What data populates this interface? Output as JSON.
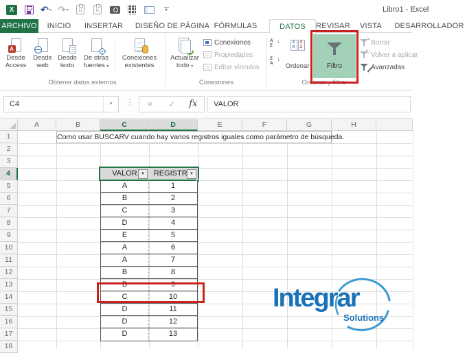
{
  "window": {
    "title": "Libro1 - Excel"
  },
  "qat": {
    "icons": [
      "excel-logo",
      "save",
      "undo",
      "redo",
      "paste-values",
      "paste-formulas",
      "camera",
      "calculator",
      "form",
      "customize-quick-access"
    ]
  },
  "tabs": [
    "ARCHIVO",
    "INICIO",
    "INSERTAR",
    "DISEÑO DE PÁGINA",
    "FÓRMULAS",
    "DATOS",
    "REVISAR",
    "VISTA",
    "DESARROLLADOR"
  ],
  "ribbon": {
    "groups": [
      {
        "label": "Obtener datos externos"
      },
      {
        "label": "Conexiones"
      },
      {
        "label": "Ordenar y filtrar"
      }
    ],
    "buttons": {
      "desde_access": {
        "l1": "Desde",
        "l2": "Access"
      },
      "desde_web": {
        "l1": "Desde",
        "l2": "web"
      },
      "desde_texto": {
        "l1": "Desde",
        "l2": "texto"
      },
      "de_otras_fuentes": {
        "l1": "De otras",
        "l2": "fuentes"
      },
      "conexiones_existentes": {
        "l1": "Conexiones",
        "l2": "existentes"
      },
      "actualizar_todo": {
        "l1": "Actualizar",
        "l2": "todo"
      },
      "conexiones": "Conexiones",
      "propiedades": "Propiedades",
      "editar_vinculos": "Editar vínculos",
      "ordenar": "Ordenar",
      "filtro": "Filtro",
      "borrar": "Borrar",
      "volver_a_aplicar": "Volver a aplicar",
      "avanzadas": "Avanzadas"
    }
  },
  "formula_bar": {
    "cell_ref": "C4",
    "content": "VALOR"
  },
  "sheet": {
    "col_headers": [
      "A",
      "B",
      "C",
      "D",
      "E",
      "F",
      "G",
      "H"
    ],
    "selected_cols": [
      "C",
      "D"
    ],
    "row_count": 18,
    "selected_row": 4,
    "note": "Como usar BUSCARV cuando hay varios registros iguales como parámetro de búsqueda.",
    "table": {
      "headers": [
        "VALOR",
        "REGISTRO"
      ],
      "rows": [
        [
          "A",
          "1"
        ],
        [
          "B",
          "2"
        ],
        [
          "C",
          "3"
        ],
        [
          "D",
          "4"
        ],
        [
          "E",
          "5"
        ],
        [
          "A",
          "6"
        ],
        [
          "A",
          "7"
        ],
        [
          "B",
          "8"
        ],
        [
          "B",
          "9"
        ],
        [
          "C",
          "10"
        ],
        [
          "D",
          "11"
        ],
        [
          "D",
          "12"
        ],
        [
          "D",
          "13"
        ]
      ]
    }
  },
  "watermark": {
    "title": "Integrar",
    "subtitle": "Solutions"
  },
  "colors": {
    "excel_green": "#217346",
    "filtro_highlight": "#a2d1b7",
    "red_box": "#c9211e",
    "logo_blue": "#1a72b8"
  }
}
